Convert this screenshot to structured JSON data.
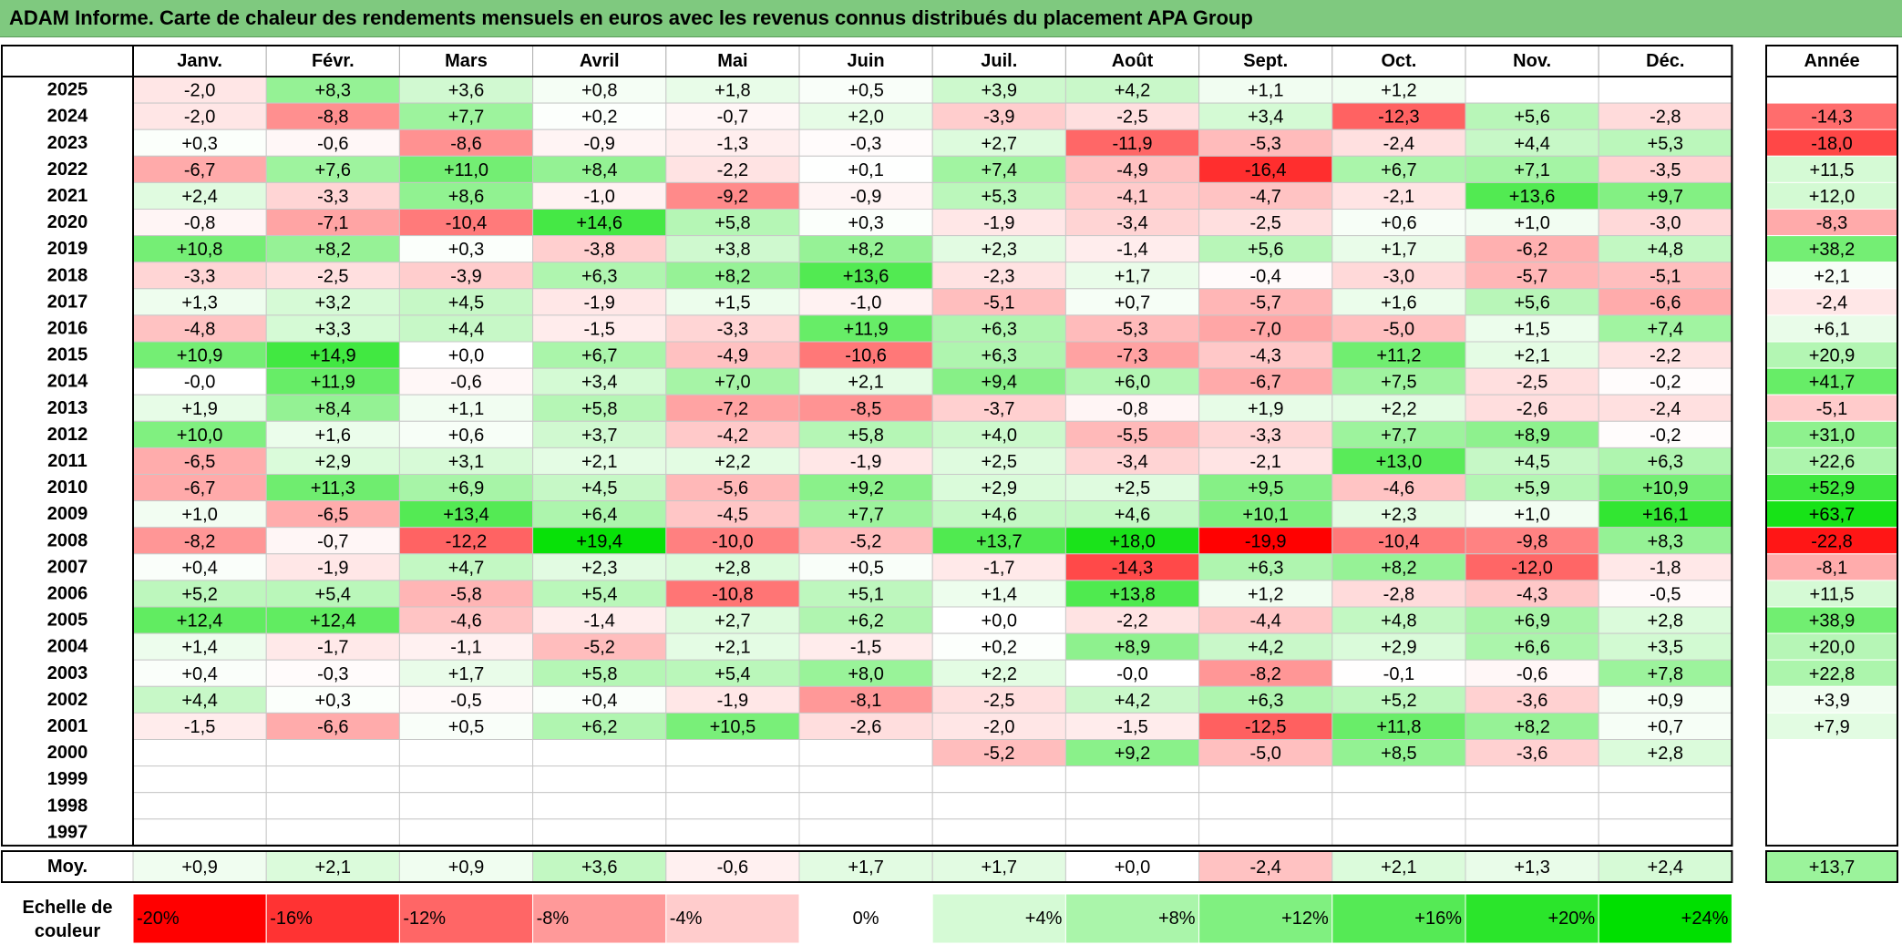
{
  "title": "ADAM Informe. Carte de chaleur des rendements mensuels en euros avec les revenus connus distribués du placement APA Group",
  "chart_data": {
    "type": "heatmap",
    "months": [
      "Janv.",
      "Févr.",
      "Mars",
      "Avril",
      "Mai",
      "Juin",
      "Juil.",
      "Août",
      "Sept.",
      "Oct.",
      "Nov.",
      "Déc."
    ],
    "annual_label": "Année",
    "avg_label": "Moy.",
    "scale_label_line1": "Echelle de",
    "scale_label_line2": "couleur",
    "rows": [
      {
        "year": "2025",
        "values": [
          "-2,0",
          "+8,3",
          "+3,6",
          "+0,8",
          "+1,8",
          "+0,5",
          "+3,9",
          "+4,2",
          "+1,1",
          "+1,2",
          "",
          ""
        ],
        "annual": ""
      },
      {
        "year": "2024",
        "values": [
          "-2,0",
          "-8,8",
          "+7,7",
          "+0,2",
          "-0,7",
          "+2,0",
          "-3,9",
          "-2,5",
          "+3,4",
          "-12,3",
          "+5,6",
          "-2,8"
        ],
        "annual": "-14,3"
      },
      {
        "year": "2023",
        "values": [
          "+0,3",
          "-0,6",
          "-8,6",
          "-0,9",
          "-1,3",
          "-0,3",
          "+2,7",
          "-11,9",
          "-5,3",
          "-2,4",
          "+4,4",
          "+5,3"
        ],
        "annual": "-18,0"
      },
      {
        "year": "2022",
        "values": [
          "-6,7",
          "+7,6",
          "+11,0",
          "+8,4",
          "-2,2",
          "+0,1",
          "+7,4",
          "-4,9",
          "-16,4",
          "+6,7",
          "+7,1",
          "-3,5"
        ],
        "annual": "+11,5"
      },
      {
        "year": "2021",
        "values": [
          "+2,4",
          "-3,3",
          "+8,6",
          "-1,0",
          "-9,2",
          "-0,9",
          "+5,3",
          "-4,1",
          "-4,7",
          "-2,1",
          "+13,6",
          "+9,7"
        ],
        "annual": "+12,0"
      },
      {
        "year": "2020",
        "values": [
          "-0,8",
          "-7,1",
          "-10,4",
          "+14,6",
          "+5,8",
          "+0,3",
          "-1,9",
          "-3,4",
          "-2,5",
          "+0,6",
          "+1,0",
          "-3,0"
        ],
        "annual": "-8,3"
      },
      {
        "year": "2019",
        "values": [
          "+10,8",
          "+8,2",
          "+0,3",
          "-3,8",
          "+3,8",
          "+8,2",
          "+2,3",
          "-1,4",
          "+5,6",
          "+1,7",
          "-6,2",
          "+4,8"
        ],
        "annual": "+38,2"
      },
      {
        "year": "2018",
        "values": [
          "-3,3",
          "-2,5",
          "-3,9",
          "+6,3",
          "+8,2",
          "+13,6",
          "-2,3",
          "+1,7",
          "-0,4",
          "-3,0",
          "-5,7",
          "-5,1"
        ],
        "annual": "+2,1"
      },
      {
        "year": "2017",
        "values": [
          "+1,3",
          "+3,2",
          "+4,5",
          "-1,9",
          "+1,5",
          "-1,0",
          "-5,1",
          "+0,7",
          "-5,7",
          "+1,6",
          "+5,6",
          "-6,6"
        ],
        "annual": "-2,4"
      },
      {
        "year": "2016",
        "values": [
          "-4,8",
          "+3,3",
          "+4,4",
          "-1,5",
          "-3,3",
          "+11,9",
          "+6,3",
          "-5,3",
          "-7,0",
          "-5,0",
          "+1,5",
          "+7,4"
        ],
        "annual": "+6,1"
      },
      {
        "year": "2015",
        "values": [
          "+10,9",
          "+14,9",
          "+0,0",
          "+6,7",
          "-4,9",
          "-10,6",
          "+6,3",
          "-7,3",
          "-4,3",
          "+11,2",
          "+2,1",
          "-2,2"
        ],
        "annual": "+20,9"
      },
      {
        "year": "2014",
        "values": [
          "-0,0",
          "+11,9",
          "-0,6",
          "+3,4",
          "+7,0",
          "+2,1",
          "+9,4",
          "+6,0",
          "-6,7",
          "+7,5",
          "-2,5",
          "-0,2"
        ],
        "annual": "+41,7"
      },
      {
        "year": "2013",
        "values": [
          "+1,9",
          "+8,4",
          "+1,1",
          "+5,8",
          "-7,2",
          "-8,5",
          "-3,7",
          "-0,8",
          "+1,9",
          "+2,2",
          "-2,6",
          "-2,4"
        ],
        "annual": "-5,1"
      },
      {
        "year": "2012",
        "values": [
          "+10,0",
          "+1,6",
          "+0,6",
          "+3,7",
          "-4,2",
          "+5,8",
          "+4,0",
          "-5,5",
          "-3,3",
          "+7,7",
          "+8,9",
          "-0,2"
        ],
        "annual": "+31,0"
      },
      {
        "year": "2011",
        "values": [
          "-6,5",
          "+2,9",
          "+3,1",
          "+2,1",
          "+2,2",
          "-1,9",
          "+2,5",
          "-3,4",
          "-2,1",
          "+13,0",
          "+4,5",
          "+6,3"
        ],
        "annual": "+22,6"
      },
      {
        "year": "2010",
        "values": [
          "-6,7",
          "+11,3",
          "+6,9",
          "+4,5",
          "-5,6",
          "+9,2",
          "+2,9",
          "+2,5",
          "+9,5",
          "-4,6",
          "+5,9",
          "+10,9"
        ],
        "annual": "+52,9"
      },
      {
        "year": "2009",
        "values": [
          "+1,0",
          "-6,5",
          "+13,4",
          "+6,4",
          "-4,5",
          "+7,7",
          "+4,6",
          "+4,6",
          "+10,1",
          "+2,3",
          "+1,0",
          "+16,1"
        ],
        "annual": "+63,7"
      },
      {
        "year": "2008",
        "values": [
          "-8,2",
          "-0,7",
          "-12,2",
          "+19,4",
          "-10,0",
          "-5,2",
          "+13,7",
          "+18,0",
          "-19,9",
          "-10,4",
          "-9,8",
          "+8,3"
        ],
        "annual": "-22,8"
      },
      {
        "year": "2007",
        "values": [
          "+0,4",
          "-1,9",
          "+4,7",
          "+2,3",
          "+2,8",
          "+0,5",
          "-1,7",
          "-14,3",
          "+6,3",
          "+8,2",
          "-12,0",
          "-1,8"
        ],
        "annual": "-8,1"
      },
      {
        "year": "2006",
        "values": [
          "+5,2",
          "+5,4",
          "-5,8",
          "+5,4",
          "-10,8",
          "+5,1",
          "+1,4",
          "+13,8",
          "+1,2",
          "-2,8",
          "-4,3",
          "-0,5"
        ],
        "annual": "+11,5"
      },
      {
        "year": "2005",
        "values": [
          "+12,4",
          "+12,4",
          "-4,6",
          "-1,4",
          "+2,7",
          "+6,2",
          "+0,0",
          "-2,2",
          "-4,4",
          "+4,8",
          "+6,9",
          "+2,8"
        ],
        "annual": "+38,9"
      },
      {
        "year": "2004",
        "values": [
          "+1,4",
          "-1,7",
          "-1,1",
          "-5,2",
          "+2,1",
          "-1,5",
          "+0,2",
          "+8,9",
          "+4,2",
          "+2,9",
          "+6,6",
          "+3,5"
        ],
        "annual": "+20,0"
      },
      {
        "year": "2003",
        "values": [
          "+0,4",
          "-0,3",
          "+1,7",
          "+5,8",
          "+5,4",
          "+8,0",
          "+2,2",
          "-0,0",
          "-8,2",
          "-0,1",
          "-0,6",
          "+7,8"
        ],
        "annual": "+22,8"
      },
      {
        "year": "2002",
        "values": [
          "+4,4",
          "+0,3",
          "-0,5",
          "+0,4",
          "-1,9",
          "-8,1",
          "-2,5",
          "+4,2",
          "+6,3",
          "+5,2",
          "-3,6",
          "+0,9"
        ],
        "annual": "+3,9"
      },
      {
        "year": "2001",
        "values": [
          "-1,5",
          "-6,6",
          "+0,5",
          "+6,2",
          "+10,5",
          "-2,6",
          "-2,0",
          "-1,5",
          "-12,5",
          "+11,8",
          "+8,2",
          "+0,7"
        ],
        "annual": "+7,9"
      },
      {
        "year": "2000",
        "values": [
          "",
          "",
          "",
          "",
          "",
          "",
          "-5,2",
          "+9,2",
          "-5,0",
          "+8,5",
          "-3,6",
          "+2,8"
        ],
        "annual": ""
      },
      {
        "year": "1999",
        "values": [
          "",
          "",
          "",
          "",
          "",
          "",
          "",
          "",
          "",
          "",
          "",
          ""
        ],
        "annual": ""
      },
      {
        "year": "1998",
        "values": [
          "",
          "",
          "",
          "",
          "",
          "",
          "",
          "",
          "",
          "",
          "",
          ""
        ],
        "annual": ""
      },
      {
        "year": "1997",
        "values": [
          "",
          "",
          "",
          "",
          "",
          "",
          "",
          "",
          "",
          "",
          "",
          ""
        ],
        "annual": ""
      }
    ],
    "averages": [
      "+0,9",
      "+2,1",
      "+0,9",
      "+3,6",
      "-0,6",
      "+1,7",
      "+1,7",
      "+0,0",
      "-2,4",
      "+2,1",
      "+1,3",
      "+2,4"
    ],
    "average_annual": "+13,7",
    "scale": [
      {
        "label": "-20%",
        "value": -20
      },
      {
        "label": "-16%",
        "value": -16
      },
      {
        "label": "-12%",
        "value": -12
      },
      {
        "label": "-8%",
        "value": -8
      },
      {
        "label": "-4%",
        "value": -4
      },
      {
        "label": "0%",
        "value": 0
      },
      {
        "label": "+4%",
        "value": 4
      },
      {
        "label": "+8%",
        "value": 8
      },
      {
        "label": "+12%",
        "value": 12
      },
      {
        "label": "+16%",
        "value": 16
      },
      {
        "label": "+20%",
        "value": 20
      },
      {
        "label": "+24%",
        "value": 24
      }
    ],
    "colors": {
      "negative_max": "#ff0000",
      "neutral": "#ffffff",
      "positive_max": "#00e000"
    }
  }
}
